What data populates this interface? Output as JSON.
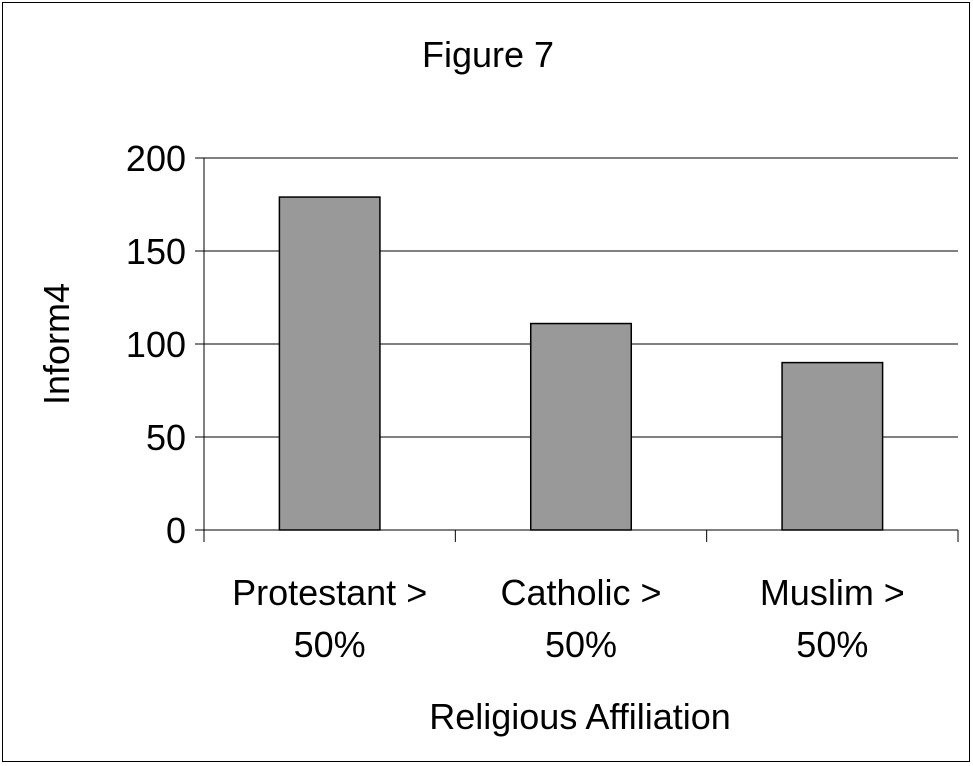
{
  "chart_data": {
    "type": "bar",
    "title": "Figure 7",
    "xlabel": "Religious Affiliation",
    "ylabel": "Inform4",
    "categories": [
      [
        "Protestant >",
        "50%"
      ],
      [
        "Catholic >",
        "50%"
      ],
      [
        "Muslim >",
        "50%"
      ]
    ],
    "values": [
      179,
      111,
      90
    ],
    "ylim": [
      0,
      200
    ],
    "yticks": [
      0,
      50,
      100,
      150,
      200
    ],
    "ytick_labels": [
      "0",
      "50",
      "100",
      "150",
      "200"
    ],
    "grid": true,
    "legend": "none",
    "bar_color": "#999999",
    "bar_edge_color": "#000000",
    "grid_color": "#000000"
  }
}
